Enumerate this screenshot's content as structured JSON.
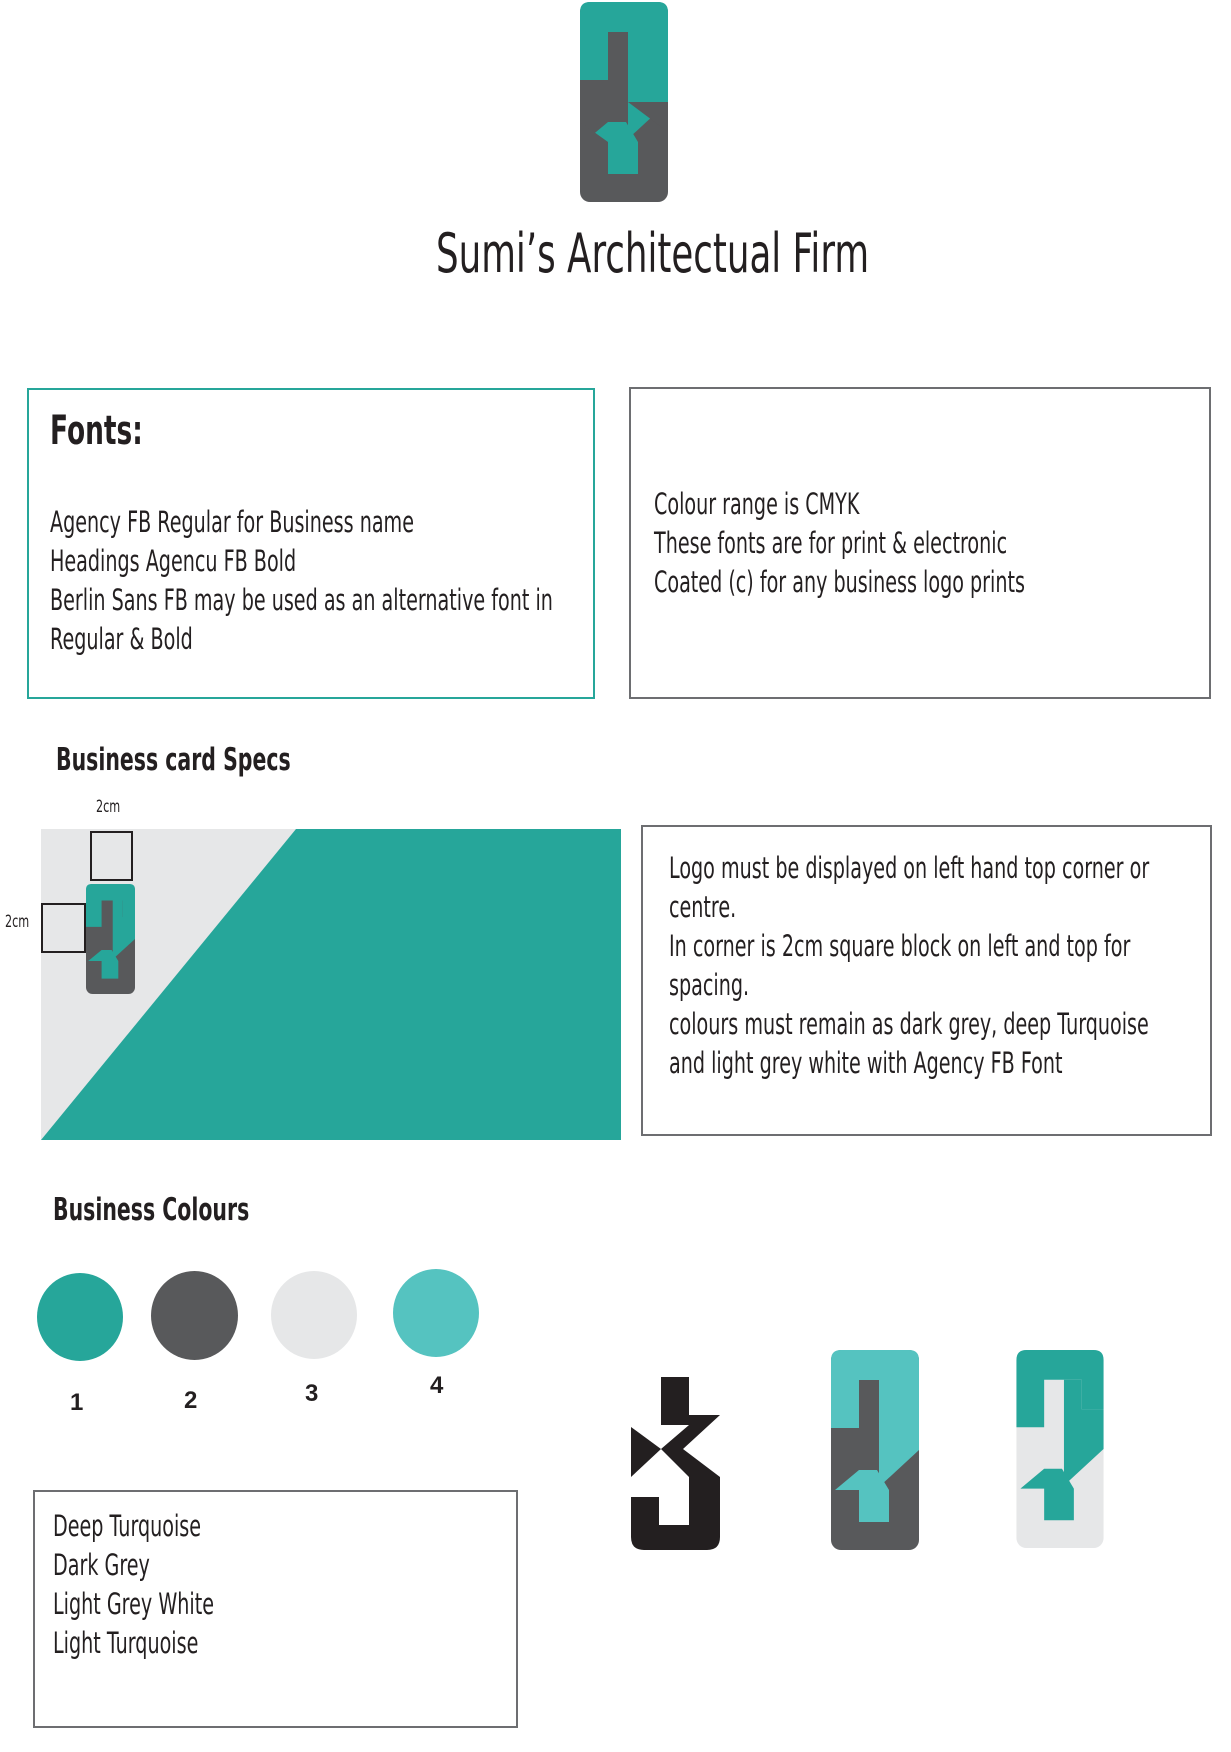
{
  "header": {
    "firm_name": "Sumi’s Architectual Firm"
  },
  "fonts_box": {
    "heading": "Fonts:",
    "lines": [
      "Agency FB Regular for Business name",
      "Headings Agencu FB Bold",
      "Berlin Sans FB may be used as an alternative font in",
      "Regular & Bold"
    ]
  },
  "colour_box": {
    "lines": [
      "Colour range is CMYK",
      "These fonts are  for print & electronic",
      "Coated (c)  for any business logo prints"
    ]
  },
  "card_specs": {
    "heading": "Business card Specs",
    "top_dimension": "2cm",
    "left_dimension": "2cm"
  },
  "logo_rules": {
    "lines": [
      "Logo must be displayed on left hand top corner or",
      "centre.",
      "In corner is 2cm square block on left and top for",
      "spacing.",
      "colours must remain as dark grey, deep Turquoise",
      "and light grey white with Agency FB Font"
    ]
  },
  "business_colours": {
    "heading": "Business Colours",
    "swatches": [
      {
        "number": "1",
        "color": "#26a69a"
      },
      {
        "number": "2",
        "color": "#58595b"
      },
      {
        "number": "3",
        "color": "#e6e7e8"
      },
      {
        "number": "4",
        "color": "#55c3c0"
      }
    ],
    "names": [
      "Deep Turquoise",
      "Dark Grey",
      "Light Grey White",
      "Light Turquoise"
    ]
  },
  "palette": {
    "deep_turquoise": "#26a69a",
    "dark_grey": "#58595b",
    "light_grey_white": "#e6e7e8",
    "light_turquoise": "#55c3c0",
    "black": "#231f20"
  },
  "logo_variants": [
    "logo-black-icon",
    "logo-light-turquoise-icon",
    "logo-light-grey-icon"
  ]
}
